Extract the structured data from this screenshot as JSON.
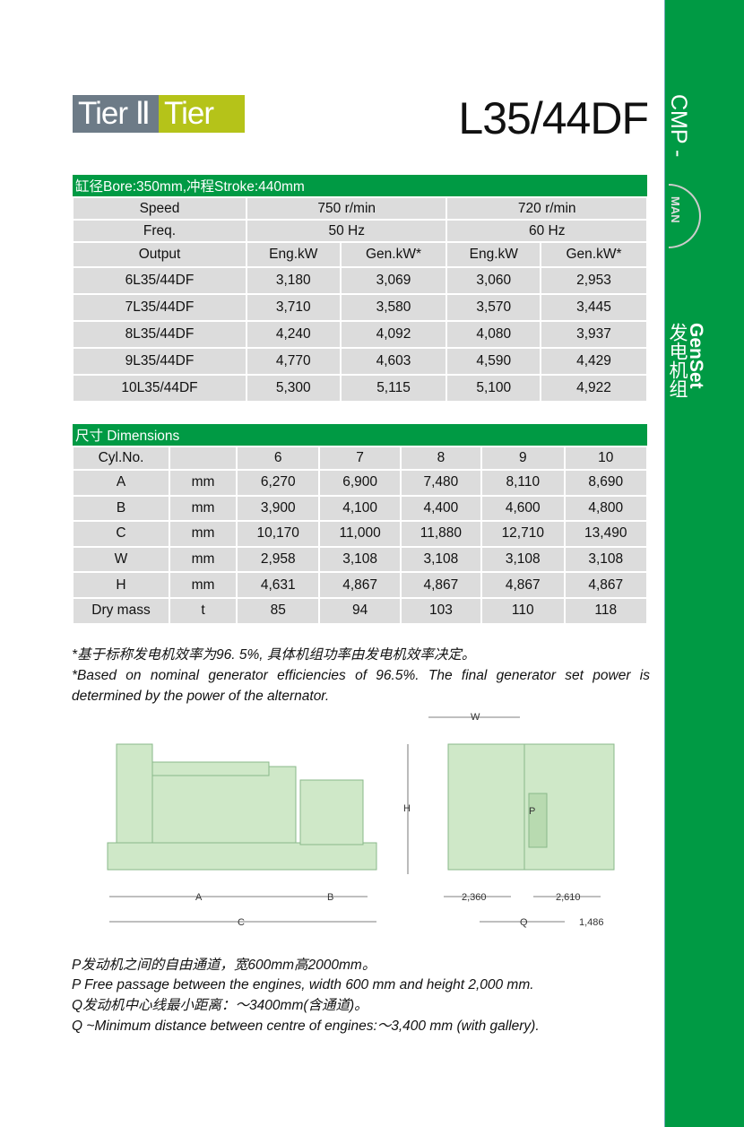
{
  "sidebar": {
    "brand": "CMP -",
    "logo": "MAN",
    "genset": "GenSet",
    "genset_cn": "发电机组",
    "color": "#009a44"
  },
  "header": {
    "tier2": "Tier Ⅱ",
    "tier3": "Tier Ⅲ",
    "model": "L35/44DF",
    "tier2_color": "#6d7b87",
    "tier3_color": "#b5c319"
  },
  "perf": {
    "title": "缸径Bore:350mm,冲程Stroke:440mm",
    "speed": [
      "Speed",
      "750 r/min",
      "720 r/min"
    ],
    "freq": [
      "Freq.",
      "50 Hz",
      "60 Hz"
    ],
    "output": [
      "Output",
      "Eng.kW",
      "Gen.kW*",
      "Eng.kW",
      "Gen.kW*"
    ],
    "rows": [
      [
        "6L35/44DF",
        "3,180",
        "3,069",
        "3,060",
        "2,953"
      ],
      [
        "7L35/44DF",
        "3,710",
        "3,580",
        "3,570",
        "3,445"
      ],
      [
        "8L35/44DF",
        "4,240",
        "4,092",
        "4,080",
        "3,937"
      ],
      [
        "9L35/44DF",
        "4,770",
        "4,603",
        "4,590",
        "4,429"
      ],
      [
        "10L35/44DF",
        "5,300",
        "5,115",
        "5,100",
        "4,922"
      ]
    ]
  },
  "dims": {
    "title": "尺寸 Dimensions",
    "header": [
      "Cyl.No.",
      "",
      "6",
      "7",
      "8",
      "9",
      "10"
    ],
    "rows": [
      [
        "A",
        "mm",
        "6,270",
        "6,900",
        "7,480",
        "8,110",
        "8,690"
      ],
      [
        "B",
        "mm",
        "3,900",
        "4,100",
        "4,400",
        "4,600",
        "4,800"
      ],
      [
        "C",
        "mm",
        "10,170",
        "11,000",
        "11,880",
        "12,710",
        "13,490"
      ],
      [
        "W",
        "mm",
        "2,958",
        "3,108",
        "3,108",
        "3,108",
        "3,108"
      ],
      [
        "H",
        "mm",
        "4,631",
        "4,867",
        "4,867",
        "4,867",
        "4,867"
      ],
      [
        "Dry mass",
        "t",
        "85",
        "94",
        "103",
        "110",
        "118"
      ]
    ]
  },
  "notes": {
    "cn": "*基于标称发电机效率为96. 5%, 具体机组功率由发电机效率决定。",
    "en": "*Based on nominal generator efficiencies of 96.5%. The final generator set power is determined by the power of the alternator."
  },
  "drawing": {
    "A": "A",
    "B": "B",
    "C": "C",
    "W": "W",
    "H": "H",
    "P": "P",
    "Q": "Q",
    "d1": "2,360",
    "d2": "2,610",
    "d3": "1,486",
    "fill": "#cfe8c8"
  },
  "footer": [
    "P发动机之间的自由通道，宽600mm高2000mm。",
    "P Free passage between the engines, width 600 mm and height 2,000 mm.",
    "Q发动机中心线最小距离：～3400mm(含通道)。",
    "Q ~Minimum distance between centre of engines:～3,400 mm (with gallery)."
  ]
}
